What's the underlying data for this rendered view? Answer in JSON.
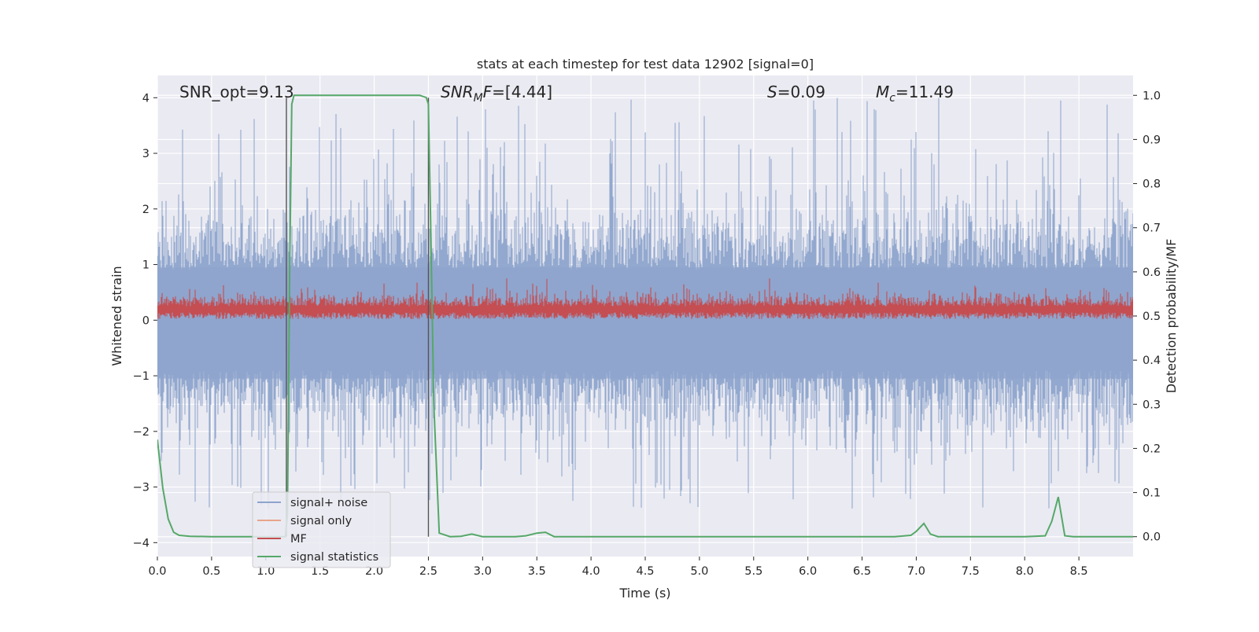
{
  "chart_data": {
    "type": "line",
    "title": "stats at each timestep for test data 12902 [signal=0]",
    "xlabel": "Time (s)",
    "ylabel_left": "Whitened strain",
    "ylabel_right": "Detection probability/MF",
    "xlim": [
      0,
      9
    ],
    "ylim_left": [
      -4.25,
      4.4
    ],
    "ylim_right": [
      -0.045,
      1.045
    ],
    "x_ticks": [
      0.0,
      0.5,
      1.0,
      1.5,
      2.0,
      2.5,
      3.0,
      3.5,
      4.0,
      4.5,
      5.0,
      5.5,
      6.0,
      6.5,
      7.0,
      7.5,
      8.0,
      8.5
    ],
    "x_tick_labels": [
      "0.0",
      "0.5",
      "1.0",
      "1.5",
      "2.0",
      "2.5",
      "3.0",
      "3.5",
      "4.0",
      "4.5",
      "5.0",
      "5.5",
      "6.0",
      "6.5",
      "7.0",
      "7.5",
      "8.0",
      "8.5"
    ],
    "y_left_ticks": [
      4,
      3,
      2,
      1,
      0,
      -1,
      -2,
      -3,
      -4
    ],
    "y_left_tick_labels": [
      "4",
      "3",
      "2",
      "1",
      "0",
      "−1",
      "−2",
      "−3",
      "−4"
    ],
    "y_right_ticks": [
      1.0,
      0.9,
      0.8,
      0.7,
      0.6,
      0.5,
      0.4,
      0.3,
      0.2,
      0.1,
      0.0
    ],
    "y_right_tick_labels": [
      "1.0",
      "0.9",
      "0.8",
      "0.7",
      "0.6",
      "0.5",
      "0.4",
      "0.3",
      "0.2",
      "0.1",
      "0.0"
    ],
    "grid": true,
    "legend_position": "lower-left",
    "annotations": {
      "snr_opt": "SNR_opt=9.13",
      "snr_mf_var": "SNR",
      "snr_mf_sub": "M",
      "snr_mf_var2": "F",
      "snr_mf_value": "=[4.44]",
      "s_var": "S",
      "s_value": "=0.09",
      "mc_var": "M",
      "mc_sub": "c",
      "mc_value": "=11.49"
    },
    "vlines_x": [
      1.19,
      2.5
    ],
    "series": [
      {
        "name": "signal+ noise",
        "color": "#8da4cc",
        "axis": "left",
        "style": "noise band, approx. between -2.5 and 2.5 with spikes to about 4"
      },
      {
        "name": "signal only",
        "color": "#e8a58a",
        "axis": "left",
        "values_note": "not visible"
      },
      {
        "name": "MF",
        "color": "#c44e52",
        "axis": "left",
        "style": "band approx. 0 to 0.7"
      },
      {
        "name": "signal statistics",
        "color": "#55a868",
        "axis": "right",
        "x": [
          0.0,
          0.05,
          0.1,
          0.15,
          0.2,
          0.3,
          0.5,
          1.0,
          1.15,
          1.18,
          1.2,
          1.22,
          1.24,
          1.26,
          1.3,
          1.5,
          2.0,
          2.3,
          2.42,
          2.48,
          2.5,
          2.52,
          2.55,
          2.6,
          2.7,
          2.8,
          2.9,
          3.0,
          3.1,
          3.2,
          3.3,
          3.4,
          3.5,
          3.58,
          3.66,
          3.8,
          4.0,
          5.0,
          6.0,
          6.8,
          6.95,
          7.0,
          7.07,
          7.13,
          7.2,
          7.3,
          8.0,
          8.19,
          8.25,
          8.31,
          8.37,
          8.45,
          9.0
        ],
        "y": [
          0.22,
          0.11,
          0.04,
          0.01,
          0.003,
          0.001,
          0.0,
          0.0,
          0.0,
          0.0,
          0.05,
          0.6,
          0.98,
          1.0,
          1.0,
          1.0,
          1.0,
          1.0,
          1.0,
          0.995,
          0.98,
          0.72,
          0.3,
          0.008,
          0.0,
          0.001,
          0.006,
          0.0,
          0.0,
          0.0,
          0.0,
          0.002,
          0.008,
          0.01,
          0.0,
          0.0,
          0.0,
          0.0,
          0.0,
          0.0,
          0.003,
          0.012,
          0.03,
          0.006,
          0.0,
          0.0,
          0.0,
          0.002,
          0.035,
          0.09,
          0.002,
          0.0,
          0.0
        ]
      }
    ],
    "colors": {
      "plot_bg": "#eaeaf2",
      "grid": "#ffffff",
      "noise": "#8da4cc",
      "mf": "#c44e52",
      "signal_only": "#e8a58a",
      "stat": "#55a868",
      "vline": "#555555"
    }
  }
}
